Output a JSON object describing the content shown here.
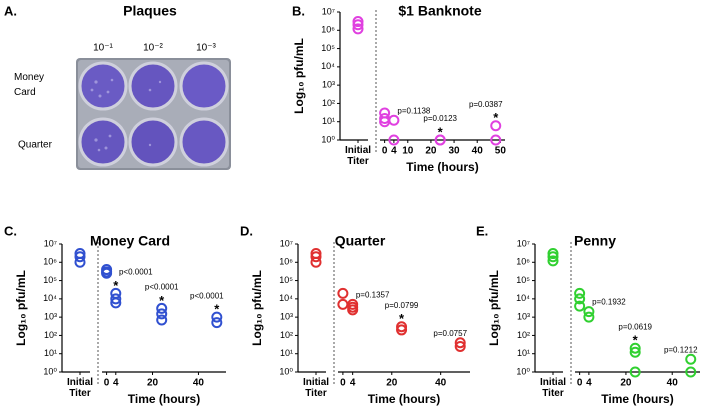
{
  "panel_a": {
    "letter": "A.",
    "title": "Plaques",
    "columns": [
      "10⁻¹",
      "10⁻²",
      "10⁻³"
    ],
    "rows": [
      "Money Card",
      "Quarter"
    ]
  },
  "chart_data": [
    {
      "type": "scatter",
      "letter": "B.",
      "title": "$1 Banknote",
      "color": "#e040e0",
      "initial_label": "Initial Titer",
      "y_label": "Log₁₀ pfu/mL",
      "x_label": "Time (hours)",
      "log_scale": true,
      "ylim": [
        1,
        10000000
      ],
      "yticks": [
        {
          "value": 1,
          "label": "10⁰"
        },
        {
          "value": 10,
          "label": "10¹"
        },
        {
          "value": 100,
          "label": "10²"
        },
        {
          "value": 1000,
          "label": "10³"
        },
        {
          "value": 10000,
          "label": "10⁴"
        },
        {
          "value": 100000,
          "label": "10⁵"
        },
        {
          "value": 1000000,
          "label": "10⁶"
        },
        {
          "value": 10000000,
          "label": "10⁷"
        }
      ],
      "xlim": [
        -2,
        52
      ],
      "xticks": [
        0,
        4,
        10,
        20,
        30,
        40,
        50
      ],
      "initial_values": [
        1200000,
        2000000,
        3000000
      ],
      "x": [
        0,
        0,
        0,
        4,
        4,
        24,
        24,
        48,
        48
      ],
      "values": [
        30,
        15,
        10,
        12,
        1,
        1,
        1,
        6,
        1
      ],
      "annotations": [
        {
          "x": 4,
          "text": "p=0.1138"
        },
        {
          "x": 24,
          "text": "p=0.0123"
        },
        {
          "x": 24,
          "text": "*"
        },
        {
          "x": 48,
          "text": "p=0.0387"
        },
        {
          "x": 48,
          "text": "*"
        }
      ]
    },
    {
      "type": "scatter",
      "letter": "C.",
      "title": "Money Card",
      "color": "#3050d0",
      "initial_label": "Initial Titer",
      "y_label": "Log₁₀ pfu/mL",
      "x_label": "Time (hours)",
      "log_scale": true,
      "ylim": [
        1,
        10000000
      ],
      "yticks": [
        {
          "value": 1,
          "label": "10⁰"
        },
        {
          "value": 10,
          "label": "10¹"
        },
        {
          "value": 100,
          "label": "10²"
        },
        {
          "value": 1000,
          "label": "10³"
        },
        {
          "value": 10000,
          "label": "10⁴"
        },
        {
          "value": 100000,
          "label": "10⁵"
        },
        {
          "value": 1000000,
          "label": "10⁶"
        },
        {
          "value": 10000000,
          "label": "10⁷"
        }
      ],
      "xlim": [
        -2,
        52
      ],
      "xticks": [
        0,
        4,
        20,
        40
      ],
      "initial_values": [
        3000000,
        2000000,
        1000000
      ],
      "x": [
        0,
        0,
        0,
        4,
        4,
        4,
        24,
        24,
        24,
        48,
        48
      ],
      "values": [
        400000,
        300000,
        250000,
        20000,
        10000,
        6000,
        3000,
        1500,
        700,
        1000,
        500
      ],
      "annotations": [
        {
          "x": 4,
          "text": "p<0.0001"
        },
        {
          "x": 4,
          "text": "*"
        },
        {
          "x": 24,
          "text": "p<0.0001"
        },
        {
          "x": 24,
          "text": "*"
        },
        {
          "x": 48,
          "text": "p<0.0001"
        },
        {
          "x": 48,
          "text": "*"
        }
      ]
    },
    {
      "type": "scatter",
      "letter": "D.",
      "title": "Quarter",
      "color": "#e03030",
      "initial_label": "Initial Titer",
      "y_label": "Log₁₀ pfu/mL",
      "x_label": "Time (hours)",
      "log_scale": true,
      "ylim": [
        1,
        10000000
      ],
      "yticks": [
        {
          "value": 1,
          "label": "10⁰"
        },
        {
          "value": 10,
          "label": "10¹"
        },
        {
          "value": 100,
          "label": "10²"
        },
        {
          "value": 1000,
          "label": "10³"
        },
        {
          "value": 10000,
          "label": "10⁴"
        },
        {
          "value": 100000,
          "label": "10⁵"
        },
        {
          "value": 1000000,
          "label": "10⁶"
        },
        {
          "value": 10000000,
          "label": "10⁷"
        }
      ],
      "xlim": [
        -2,
        52
      ],
      "xticks": [
        0,
        4,
        20,
        40
      ],
      "initial_values": [
        3000000,
        2000000,
        1000000
      ],
      "x": [
        0,
        0,
        4,
        4,
        4,
        24,
        24,
        48,
        48
      ],
      "values": [
        20000,
        5000,
        5000,
        3500,
        2500,
        300,
        200,
        40,
        25
      ],
      "annotations": [
        {
          "x": 4,
          "text": "p=0.1357"
        },
        {
          "x": 24,
          "text": "p=0.0799"
        },
        {
          "x": 24,
          "text": "*"
        },
        {
          "x": 48,
          "text": "p=0.0757"
        }
      ]
    },
    {
      "type": "scatter",
      "letter": "E.",
      "title": "Penny",
      "color": "#30d030",
      "initial_label": "Initial Titer",
      "y_label": "Log₁₀ pfu/mL",
      "x_label": "Time (hours)",
      "log_scale": true,
      "ylim": [
        1,
        10000000
      ],
      "yticks": [
        {
          "value": 1,
          "label": "10⁰"
        },
        {
          "value": 10,
          "label": "10¹"
        },
        {
          "value": 100,
          "label": "10²"
        },
        {
          "value": 1000,
          "label": "10³"
        },
        {
          "value": 10000,
          "label": "10⁴"
        },
        {
          "value": 100000,
          "label": "10⁵"
        },
        {
          "value": 1000000,
          "label": "10⁶"
        },
        {
          "value": 10000000,
          "label": "10⁷"
        }
      ],
      "xlim": [
        -2,
        52
      ],
      "xticks": [
        0,
        4,
        20,
        40
      ],
      "initial_values": [
        3000000,
        2000000,
        1200000
      ],
      "x": [
        0,
        0,
        0,
        4,
        4,
        24,
        24,
        24,
        48,
        48
      ],
      "values": [
        20000,
        10000,
        4000,
        2000,
        1000,
        20,
        12,
        1,
        5,
        1
      ],
      "annotations": [
        {
          "x": 4,
          "text": "p=0.1932"
        },
        {
          "x": 24,
          "text": "p=0.0619"
        },
        {
          "x": 24,
          "text": "*"
        },
        {
          "x": 48,
          "text": "p=0.1212"
        }
      ]
    }
  ]
}
